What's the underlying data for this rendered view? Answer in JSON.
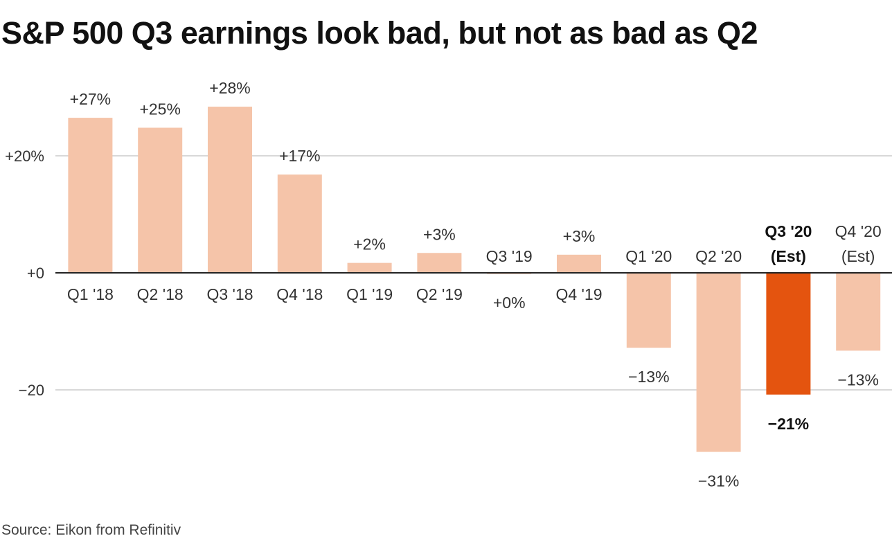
{
  "title": "S&P 500 Q3 earnings look bad, but not as bad as Q2",
  "source": "Source: Eikon from Refinitiv",
  "colors": {
    "bar": "#f5c4a9",
    "highlight": "#e4540f",
    "grid": "#cccccc",
    "zero_line": "#222222"
  },
  "chart_data": {
    "type": "bar",
    "title": "S&P 500 Q3 earnings look bad, but not as bad as Q2",
    "xlabel": "",
    "ylabel": "",
    "ylim": [
      -37,
      35
    ],
    "yticks": [
      {
        "value": 20,
        "label": "+20%"
      },
      {
        "value": 0,
        "label": "+0"
      },
      {
        "value": -20,
        "label": "−20"
      }
    ],
    "grid": true,
    "categories": [
      "Q1 '18",
      "Q2 '18",
      "Q3 '18",
      "Q4 '18",
      "Q1 '19",
      "Q2 '19",
      "Q3 '19",
      "Q4 '19",
      "Q1 '20",
      "Q2 '20",
      "Q3 '20 (Est)",
      "Q4 '20 (Est)"
    ],
    "category_lines": [
      [
        "Q1 '18"
      ],
      [
        "Q2 '18"
      ],
      [
        "Q3 '18"
      ],
      [
        "Q4 '18"
      ],
      [
        "Q1 '19"
      ],
      [
        "Q2 '19"
      ],
      [
        "Q3 '19"
      ],
      [
        "Q4 '19"
      ],
      [
        "Q1 '20"
      ],
      [
        "Q2 '20"
      ],
      [
        "Q3 '20",
        "(Est)"
      ],
      [
        "Q4 '20",
        "(Est)"
      ]
    ],
    "values": [
      26.5,
      24.8,
      28.4,
      16.8,
      1.7,
      3.4,
      -0.2,
      3.1,
      -12.8,
      -30.6,
      -20.8,
      -13.3
    ],
    "labels": [
      "+27%",
      "+25%",
      "+28%",
      "+17%",
      "+2%",
      "+3%",
      "+0%",
      "+3%",
      "−13%",
      "−31%",
      "−21%",
      "−13%"
    ],
    "highlight_index": 10
  }
}
